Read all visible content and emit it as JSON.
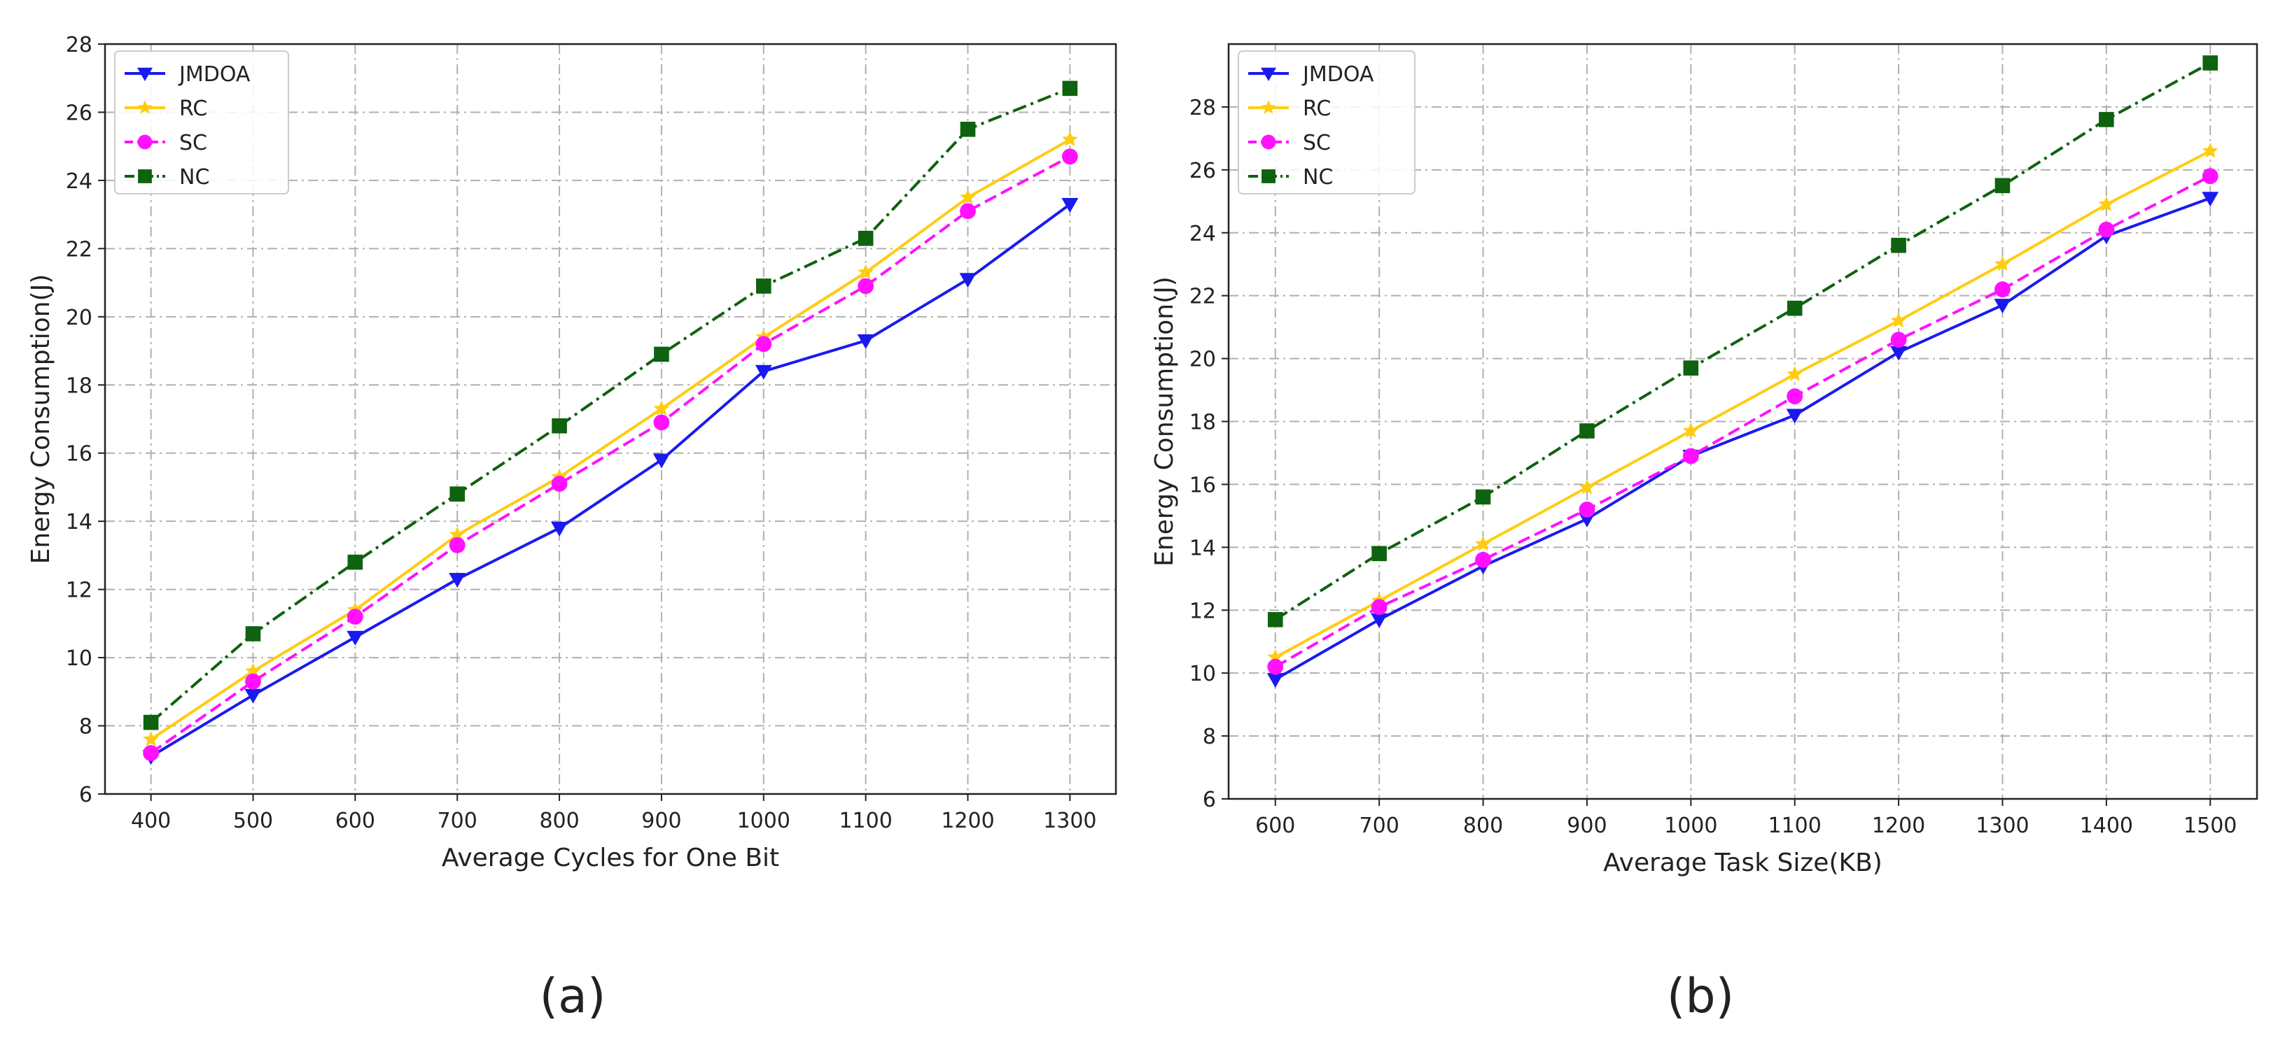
{
  "chart_data": [
    {
      "type": "line",
      "caption": "(a)",
      "xlabel": "Average Cycles for One Bit",
      "ylabel": "Energy Consumption(J)",
      "x": [
        400,
        500,
        600,
        700,
        800,
        900,
        1000,
        1100,
        1200,
        1300
      ],
      "xticks": [
        "400",
        "500",
        "600",
        "700",
        "800",
        "900",
        "1000",
        "1100",
        "1200",
        "1300"
      ],
      "yticks": [
        "6",
        "8",
        "10",
        "12",
        "14",
        "16",
        "18",
        "20",
        "22",
        "24",
        "26",
        "28"
      ],
      "xlim": [
        355,
        1345
      ],
      "ylim": [
        6,
        28
      ],
      "grid": true,
      "legend_position": "top-left",
      "series": [
        {
          "name": "JMDOA",
          "color": "#1a1aee",
          "marker": "triangle-down",
          "linestyle": "solid",
          "values": [
            7.1,
            8.9,
            10.6,
            12.3,
            13.8,
            15.8,
            18.4,
            19.3,
            21.1,
            23.3
          ]
        },
        {
          "name": "RC",
          "color": "#ffcc11",
          "marker": "star",
          "linestyle": "solid",
          "values": [
            7.6,
            9.6,
            11.4,
            13.6,
            15.3,
            17.3,
            19.4,
            21.3,
            23.5,
            25.2
          ]
        },
        {
          "name": "SC",
          "color": "#ff11ff",
          "marker": "circle",
          "linestyle": "dashed",
          "values": [
            7.2,
            9.3,
            11.2,
            13.3,
            15.1,
            16.9,
            19.2,
            20.9,
            23.1,
            24.7
          ]
        },
        {
          "name": "NC",
          "color": "#0f620f",
          "marker": "square",
          "linestyle": "dashdot",
          "values": [
            8.1,
            10.7,
            12.8,
            14.8,
            16.8,
            18.9,
            20.9,
            22.3,
            25.5,
            26.7
          ]
        }
      ]
    },
    {
      "type": "line",
      "caption": "(b)",
      "xlabel": "Average Task Size(KB)",
      "ylabel": "Energy Consumption(J)",
      "x": [
        600,
        700,
        800,
        900,
        1000,
        1100,
        1200,
        1300,
        1400,
        1500
      ],
      "xticks": [
        "600",
        "700",
        "800",
        "900",
        "1000",
        "1100",
        "1200",
        "1300",
        "1400",
        "1500"
      ],
      "yticks": [
        "6",
        "8",
        "10",
        "12",
        "14",
        "16",
        "18",
        "20",
        "22",
        "24",
        "26",
        "28"
      ],
      "xlim": [
        555,
        1545
      ],
      "ylim": [
        6,
        30
      ],
      "grid": true,
      "legend_position": "top-left",
      "series": [
        {
          "name": "JMDOA",
          "color": "#1a1aee",
          "marker": "triangle-down",
          "linestyle": "solid",
          "values": [
            9.8,
            11.7,
            13.4,
            14.9,
            16.9,
            18.2,
            20.2,
            21.7,
            23.9,
            25.1
          ]
        },
        {
          "name": "RC",
          "color": "#ffcc11",
          "marker": "star",
          "linestyle": "solid",
          "values": [
            10.5,
            12.3,
            14.1,
            15.9,
            17.7,
            19.5,
            21.2,
            23.0,
            24.9,
            26.6
          ]
        },
        {
          "name": "SC",
          "color": "#ff11ff",
          "marker": "circle",
          "linestyle": "dashed",
          "values": [
            10.2,
            12.1,
            13.6,
            15.2,
            16.9,
            18.8,
            20.6,
            22.2,
            24.1,
            25.8
          ]
        },
        {
          "name": "NC",
          "color": "#0f620f",
          "marker": "square",
          "linestyle": "dashdot",
          "values": [
            11.7,
            13.8,
            15.6,
            17.7,
            19.7,
            21.6,
            23.6,
            25.5,
            27.6,
            29.4
          ]
        }
      ]
    }
  ]
}
